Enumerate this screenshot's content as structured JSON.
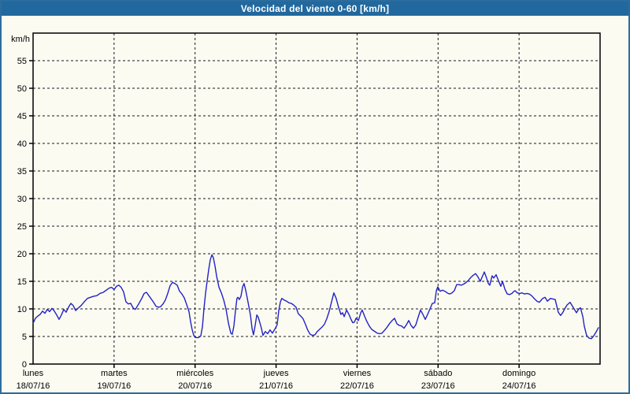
{
  "title": "Velocidad del viento 0-60 [km/h]",
  "colors": {
    "titlebar_bg": "#21689e",
    "frame_border": "#2c6d9e",
    "page_bg": "#fbfbf2",
    "series_line": "#2222c4",
    "grid": "#1a1a1a"
  },
  "y_axis": {
    "unit_label": "km/h",
    "min": 0,
    "max": 60,
    "tick_step": 5,
    "tick_labels": [
      "0",
      "5",
      "10",
      "15",
      "20",
      "25",
      "30",
      "35",
      "40",
      "45",
      "50",
      "55"
    ]
  },
  "x_axis": {
    "days": [
      {
        "name": "lunes",
        "date": "18/07/16"
      },
      {
        "name": "martes",
        "date": "19/07/16"
      },
      {
        "name": "miércoles",
        "date": "20/07/16"
      },
      {
        "name": "jueves",
        "date": "21/07/16"
      },
      {
        "name": "viernes",
        "date": "22/07/16"
      },
      {
        "name": "sábado",
        "date": "23/07/16"
      },
      {
        "name": "domingo",
        "date": "24/07/16"
      }
    ]
  },
  "chart_data": {
    "type": "line",
    "title": "Velocidad del viento 0-60 [km/h]",
    "xlabel": "",
    "ylabel": "km/h",
    "ylim": [
      0,
      60
    ],
    "grid": true,
    "legend_position": "none",
    "x_unit": "hours since 18/07/16 00:00",
    "x_range_hours": [
      0,
      168
    ],
    "series": [
      {
        "name": "Velocidad del viento",
        "color": "#2222c4",
        "points": [
          [
            0,
            7.4
          ],
          [
            0.7,
            8.3
          ],
          [
            1.4,
            8.7
          ],
          [
            2.1,
            9.0
          ],
          [
            2.8,
            9.6
          ],
          [
            3.5,
            9.2
          ],
          [
            4.2,
            9.9
          ],
          [
            4.9,
            9.5
          ],
          [
            5.6,
            10.1
          ],
          [
            6.3,
            9.6
          ],
          [
            7,
            8.9
          ],
          [
            7.7,
            8.1
          ],
          [
            8.4,
            8.9
          ],
          [
            9.1,
            9.9
          ],
          [
            9.8,
            9.4
          ],
          [
            10.5,
            10.3
          ],
          [
            11.2,
            11.0
          ],
          [
            11.9,
            10.6
          ],
          [
            12.6,
            9.7
          ],
          [
            13.3,
            10.1
          ],
          [
            14.2,
            10.6
          ],
          [
            15.2,
            11.3
          ],
          [
            16.1,
            11.9
          ],
          [
            17,
            12.1
          ],
          [
            18,
            12.3
          ],
          [
            18.9,
            12.4
          ],
          [
            19.8,
            12.8
          ],
          [
            20.8,
            13.0
          ],
          [
            21.7,
            13.4
          ],
          [
            22.6,
            13.8
          ],
          [
            23.3,
            13.9
          ],
          [
            24,
            13.5
          ],
          [
            24.7,
            14.1
          ],
          [
            25.4,
            14.3
          ],
          [
            26.1,
            13.9
          ],
          [
            26.8,
            13.1
          ],
          [
            27.5,
            11.3
          ],
          [
            28.2,
            10.9
          ],
          [
            28.9,
            11.0
          ],
          [
            29.6,
            10.2
          ],
          [
            30.3,
            9.9
          ],
          [
            31.3,
            10.9
          ],
          [
            32.2,
            11.9
          ],
          [
            32.9,
            12.8
          ],
          [
            33.6,
            13.0
          ],
          [
            34.3,
            12.4
          ],
          [
            35,
            11.8
          ],
          [
            35.7,
            11.2
          ],
          [
            36.4,
            10.5
          ],
          [
            37.1,
            10.3
          ],
          [
            37.8,
            10.4
          ],
          [
            38.5,
            10.9
          ],
          [
            39.2,
            11.6
          ],
          [
            39.9,
            12.8
          ],
          [
            40.6,
            14.2
          ],
          [
            41.3,
            14.8
          ],
          [
            42,
            14.6
          ],
          [
            42.7,
            14.3
          ],
          [
            43.4,
            13.2
          ],
          [
            44.1,
            12.7
          ],
          [
            44.8,
            12.0
          ],
          [
            45.5,
            10.8
          ],
          [
            46.2,
            9.5
          ],
          [
            46.7,
            7.6
          ],
          [
            47.1,
            6.3
          ],
          [
            47.6,
            5.2
          ],
          [
            48.3,
            4.8
          ],
          [
            49,
            4.8
          ],
          [
            49.7,
            5.1
          ],
          [
            50.2,
            6.8
          ],
          [
            50.6,
            9.9
          ],
          [
            51.1,
            12.8
          ],
          [
            51.6,
            15.1
          ],
          [
            52,
            17.0
          ],
          [
            52.5,
            18.9
          ],
          [
            53,
            19.8
          ],
          [
            53.4,
            19.3
          ],
          [
            53.9,
            17.8
          ],
          [
            54.4,
            15.9
          ],
          [
            55.1,
            13.9
          ],
          [
            55.8,
            12.9
          ],
          [
            56.5,
            11.6
          ],
          [
            57.2,
            9.9
          ],
          [
            57.9,
            7.4
          ],
          [
            58.6,
            5.6
          ],
          [
            59,
            5.4
          ],
          [
            59.5,
            6.9
          ],
          [
            60,
            9.8
          ],
          [
            60.4,
            11.9
          ],
          [
            60.7,
            12.1
          ],
          [
            61.1,
            11.7
          ],
          [
            61.6,
            12.3
          ],
          [
            62.1,
            14.0
          ],
          [
            62.5,
            14.6
          ],
          [
            63,
            13.4
          ],
          [
            63.7,
            11.2
          ],
          [
            64.4,
            8.9
          ],
          [
            64.9,
            6.4
          ],
          [
            65.3,
            5.3
          ],
          [
            65.8,
            7.0
          ],
          [
            66.3,
            8.9
          ],
          [
            66.7,
            8.5
          ],
          [
            67.2,
            7.5
          ],
          [
            67.7,
            6.4
          ],
          [
            68.1,
            5.2
          ],
          [
            68.8,
            5.9
          ],
          [
            69.5,
            5.5
          ],
          [
            70.2,
            6.2
          ],
          [
            70.9,
            5.6
          ],
          [
            71.6,
            6.3
          ],
          [
            72.3,
            7.1
          ],
          [
            72.8,
            9.7
          ],
          [
            73.3,
            11.3
          ],
          [
            73.7,
            11.9
          ],
          [
            74.4,
            11.6
          ],
          [
            75.1,
            11.4
          ],
          [
            75.8,
            11.1
          ],
          [
            76.5,
            11.0
          ],
          [
            77.2,
            10.7
          ],
          [
            77.9,
            10.3
          ],
          [
            78.6,
            9.1
          ],
          [
            79.3,
            8.7
          ],
          [
            80,
            8.2
          ],
          [
            80.7,
            7.2
          ],
          [
            81.4,
            6.1
          ],
          [
            82.1,
            5.4
          ],
          [
            82.8,
            5.2
          ],
          [
            83.5,
            5.3
          ],
          [
            84.2,
            5.9
          ],
          [
            84.9,
            6.3
          ],
          [
            85.6,
            6.7
          ],
          [
            86.3,
            7.2
          ],
          [
            87,
            8.2
          ],
          [
            87.7,
            9.5
          ],
          [
            88.4,
            11.2
          ],
          [
            89.1,
            12.9
          ],
          [
            89.8,
            11.9
          ],
          [
            90.5,
            10.3
          ],
          [
            91.2,
            9.0
          ],
          [
            91.7,
            9.3
          ],
          [
            92.2,
            8.6
          ],
          [
            92.9,
            9.8
          ],
          [
            93.6,
            9.0
          ],
          [
            94.3,
            8.0
          ],
          [
            94.7,
            7.5
          ],
          [
            95.2,
            7.6
          ],
          [
            95.7,
            8.3
          ],
          [
            96.4,
            7.9
          ],
          [
            97.1,
            9.3
          ],
          [
            97.5,
            9.8
          ],
          [
            98.2,
            8.7
          ],
          [
            98.9,
            7.7
          ],
          [
            99.6,
            6.9
          ],
          [
            100.3,
            6.3
          ],
          [
            101,
            6.0
          ],
          [
            102,
            5.6
          ],
          [
            102.7,
            5.5
          ],
          [
            103.4,
            5.6
          ],
          [
            104.1,
            6.1
          ],
          [
            104.8,
            6.6
          ],
          [
            105.7,
            7.4
          ],
          [
            106.4,
            7.9
          ],
          [
            107.1,
            8.3
          ],
          [
            107.8,
            7.3
          ],
          [
            108.5,
            7.0
          ],
          [
            109.2,
            6.9
          ],
          [
            109.9,
            6.5
          ],
          [
            110.6,
            7.1
          ],
          [
            111.3,
            7.9
          ],
          [
            112,
            7.0
          ],
          [
            112.7,
            6.5
          ],
          [
            113.4,
            7.1
          ],
          [
            114.1,
            8.5
          ],
          [
            114.8,
            9.8
          ],
          [
            115.5,
            9.0
          ],
          [
            116.2,
            8.1
          ],
          [
            116.9,
            9.0
          ],
          [
            117.6,
            10.0
          ],
          [
            118.3,
            11.0
          ],
          [
            119,
            11.1
          ],
          [
            119.5,
            13.3
          ],
          [
            119.9,
            14.0
          ],
          [
            120.6,
            13.2
          ],
          [
            121.3,
            13.4
          ],
          [
            122,
            13.2
          ],
          [
            122.7,
            12.9
          ],
          [
            123.4,
            12.7
          ],
          [
            124.1,
            12.9
          ],
          [
            124.8,
            13.3
          ],
          [
            125.5,
            14.4
          ],
          [
            126.2,
            14.4
          ],
          [
            126.9,
            14.3
          ],
          [
            127.6,
            14.5
          ],
          [
            128.3,
            14.8
          ],
          [
            129,
            15.2
          ],
          [
            129.7,
            15.7
          ],
          [
            130.4,
            16.1
          ],
          [
            131.1,
            16.4
          ],
          [
            131.8,
            15.8
          ],
          [
            132.5,
            15.0
          ],
          [
            133.2,
            16.0
          ],
          [
            133.7,
            16.7
          ],
          [
            134.2,
            15.9
          ],
          [
            134.9,
            14.6
          ],
          [
            135.3,
            14.3
          ],
          [
            136,
            16.0
          ],
          [
            136.5,
            15.6
          ],
          [
            137.2,
            16.2
          ],
          [
            137.9,
            15.1
          ],
          [
            138.6,
            14.1
          ],
          [
            139.1,
            15.0
          ],
          [
            139.8,
            13.6
          ],
          [
            140.5,
            12.7
          ],
          [
            141.2,
            12.6
          ],
          [
            141.9,
            12.8
          ],
          [
            142.3,
            13.1
          ],
          [
            142.8,
            13.3
          ],
          [
            143.5,
            12.9
          ],
          [
            144.2,
            12.8
          ],
          [
            144.9,
            12.9
          ],
          [
            145.6,
            12.7
          ],
          [
            146.3,
            12.8
          ],
          [
            147,
            12.7
          ],
          [
            147.7,
            12.4
          ],
          [
            148.6,
            11.8
          ],
          [
            149.3,
            11.4
          ],
          [
            150,
            11.2
          ],
          [
            151,
            11.9
          ],
          [
            151.7,
            12.1
          ],
          [
            152.4,
            11.4
          ],
          [
            153.3,
            11.9
          ],
          [
            154,
            11.8
          ],
          [
            154.7,
            11.7
          ],
          [
            155.6,
            9.4
          ],
          [
            156.3,
            8.8
          ],
          [
            157,
            9.4
          ],
          [
            157.5,
            10.0
          ],
          [
            158.2,
            10.7
          ],
          [
            159.1,
            11.2
          ],
          [
            159.8,
            10.5
          ],
          [
            160.5,
            9.8
          ],
          [
            161,
            9.3
          ],
          [
            161.7,
            10.0
          ],
          [
            162.2,
            10.2
          ],
          [
            162.9,
            8.6
          ],
          [
            163.3,
            6.9
          ],
          [
            164,
            5.2
          ],
          [
            164.7,
            4.7
          ],
          [
            165.4,
            4.6
          ],
          [
            166.1,
            5.1
          ],
          [
            166.8,
            5.8
          ],
          [
            167.5,
            6.6
          ]
        ]
      }
    ]
  }
}
